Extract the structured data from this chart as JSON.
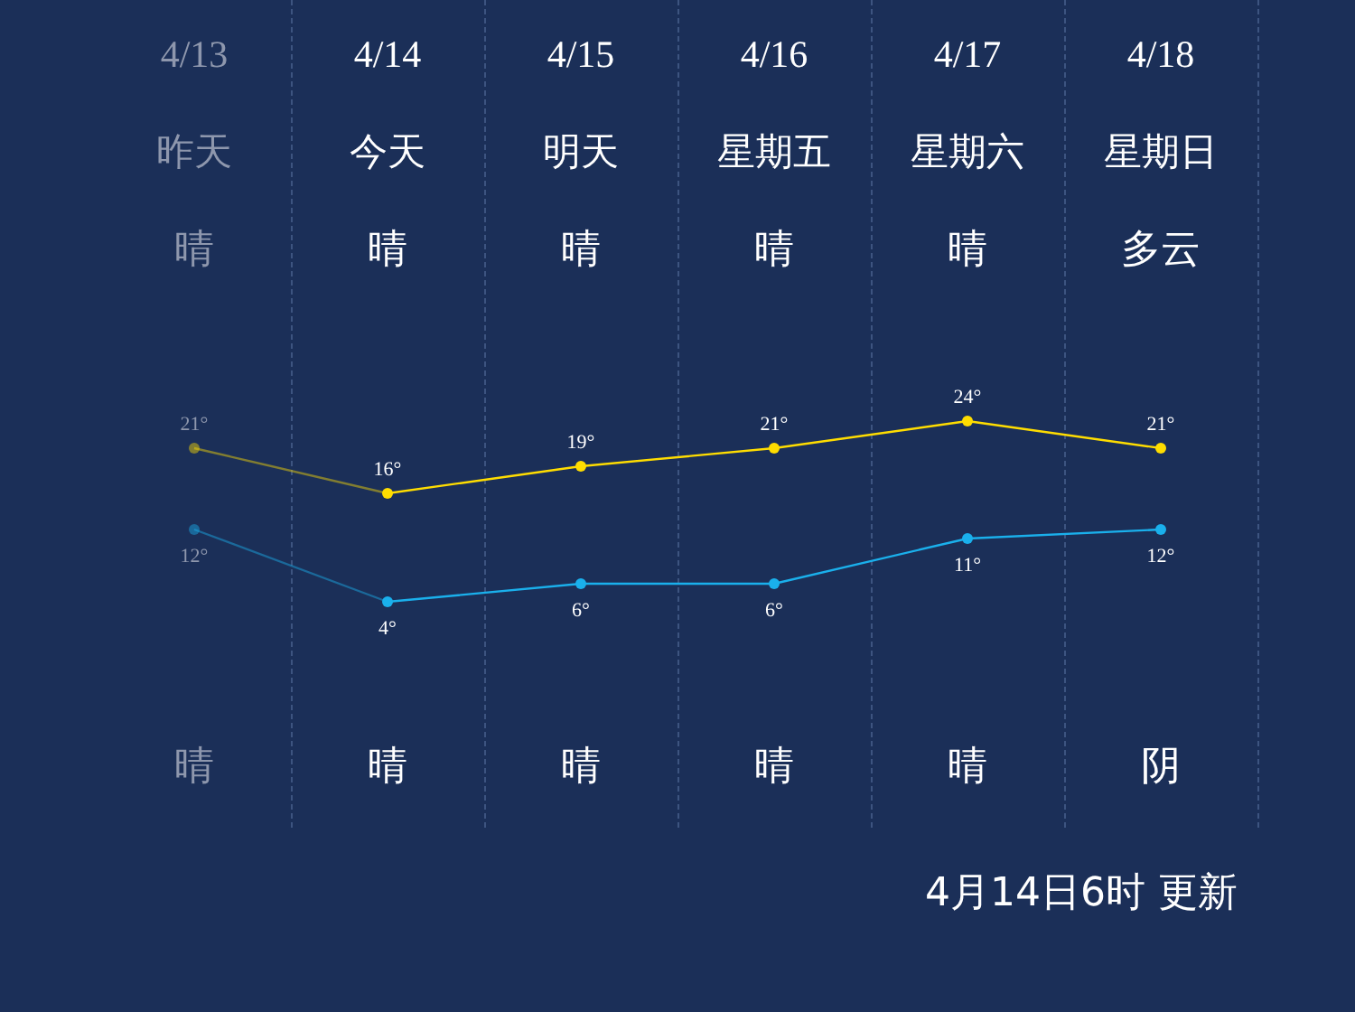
{
  "chart_data": {
    "type": "line",
    "marker": "circle",
    "categories": [
      "4/13",
      "4/14",
      "4/15",
      "4/16",
      "4/17",
      "4/18"
    ],
    "series": [
      {
        "color": "#ffdd00",
        "values": [
          21,
          16,
          19,
          21,
          24,
          21
        ],
        "value_labels": [
          "21°",
          "16°",
          "19°",
          "21°",
          "24°",
          "21°"
        ]
      },
      {
        "color": "#1ab0ec",
        "values": [
          12,
          4,
          6,
          6,
          11,
          12
        ],
        "value_labels": [
          "12°",
          "4°",
          "6°",
          "6°",
          "11°",
          "12°"
        ]
      }
    ],
    "annotations": [
      "昨天",
      "今天",
      "明天",
      "星期五",
      "星期六",
      "星期日",
      "晴",
      "晴",
      "晴",
      "晴",
      "晴",
      "多云",
      "晴",
      "晴",
      "晴",
      "晴",
      "晴",
      "阴",
      "4月14日6时 更新"
    ]
  }
}
